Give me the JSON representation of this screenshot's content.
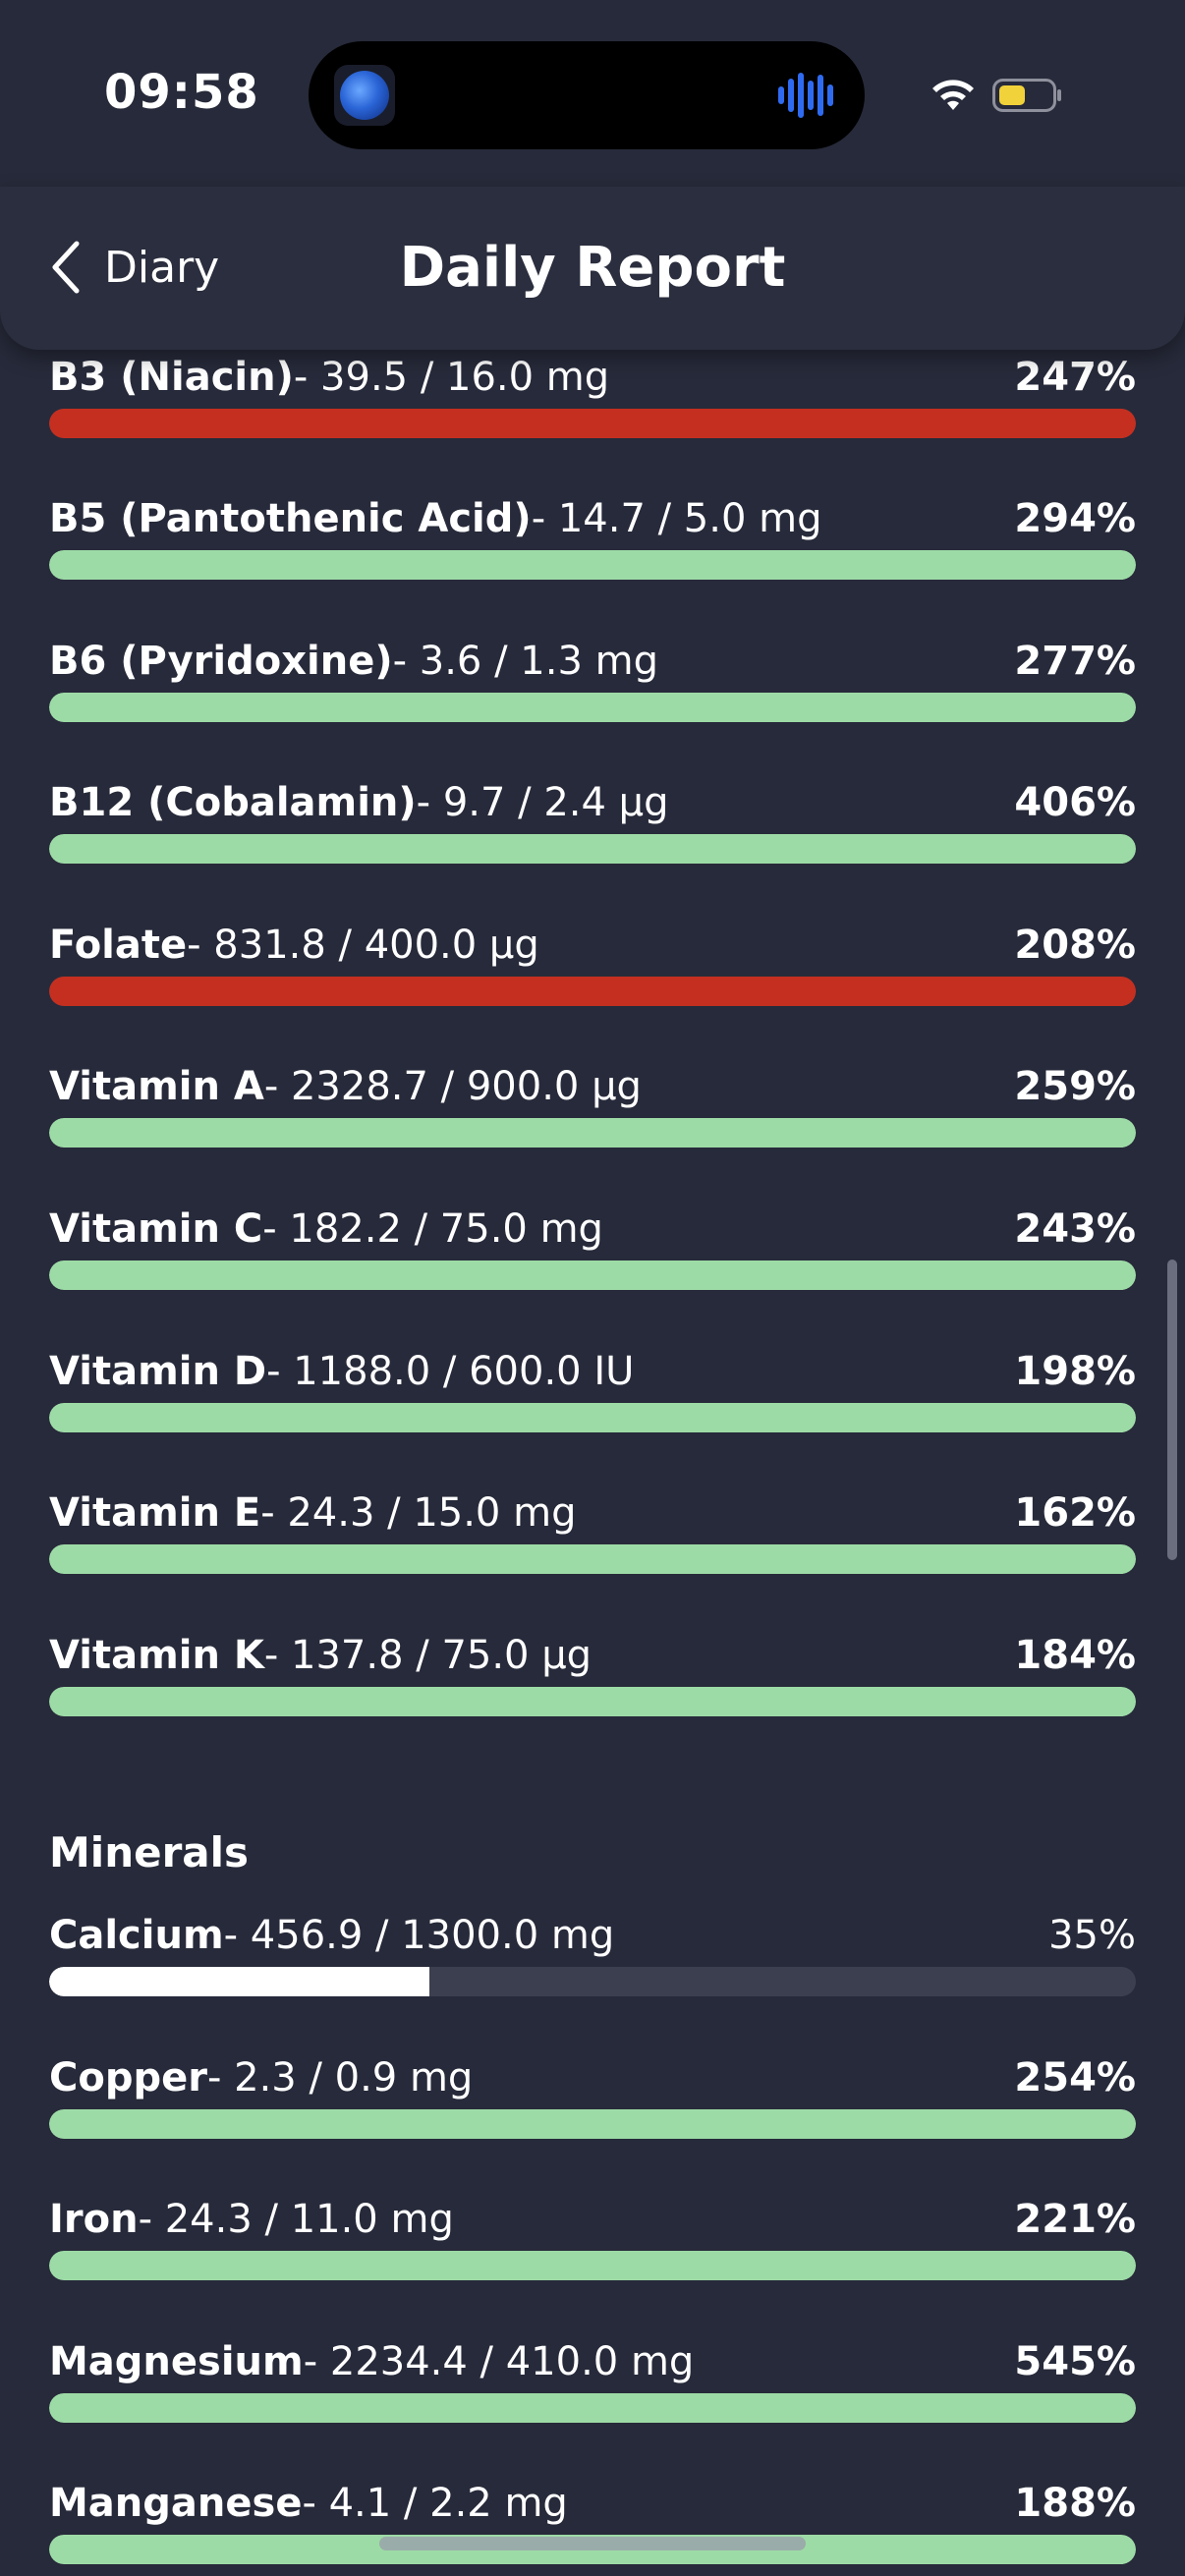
{
  "status_bar": {
    "time": "09:58"
  },
  "nav": {
    "back_label": "Diary",
    "title": "Daily Report"
  },
  "vitamins": [
    {
      "name": "B3 (Niacin)",
      "amount": "- 39.5 / 16.0 mg",
      "percent": "247%",
      "fill": 1.0,
      "state": "over"
    },
    {
      "name": "B5 (Pantothenic Acid)",
      "amount": "- 14.7 / 5.0 mg",
      "percent": "294%",
      "fill": 1.0,
      "state": "ok"
    },
    {
      "name": "B6 (Pyridoxine)",
      "amount": "- 3.6 / 1.3 mg",
      "percent": "277%",
      "fill": 1.0,
      "state": "ok"
    },
    {
      "name": "B12 (Cobalamin)",
      "amount": "- 9.7 / 2.4 µg",
      "percent": "406%",
      "fill": 1.0,
      "state": "ok"
    },
    {
      "name": "Folate",
      "amount": "- 831.8 / 400.0 µg",
      "percent": "208%",
      "fill": 1.0,
      "state": "over"
    },
    {
      "name": "Vitamin A",
      "amount": "- 2328.7 / 900.0 µg",
      "percent": "259%",
      "fill": 1.0,
      "state": "ok"
    },
    {
      "name": "Vitamin C",
      "amount": "- 182.2 / 75.0 mg",
      "percent": "243%",
      "fill": 1.0,
      "state": "ok"
    },
    {
      "name": "Vitamin D",
      "amount": "- 1188.0 / 600.0 IU",
      "percent": "198%",
      "fill": 1.0,
      "state": "ok"
    },
    {
      "name": "Vitamin E",
      "amount": "- 24.3 / 15.0 mg",
      "percent": "162%",
      "fill": 1.0,
      "state": "ok"
    },
    {
      "name": "Vitamin K",
      "amount": "- 137.8 / 75.0 µg",
      "percent": "184%",
      "fill": 1.0,
      "state": "ok"
    }
  ],
  "minerals_title": "Minerals",
  "minerals": [
    {
      "name": "Calcium",
      "amount": "- 456.9 / 1300.0 mg",
      "percent": "35%",
      "fill": 0.35,
      "state": "under"
    },
    {
      "name": "Copper",
      "amount": "- 2.3 / 0.9 mg",
      "percent": "254%",
      "fill": 1.0,
      "state": "ok"
    },
    {
      "name": "Iron",
      "amount": "- 24.3 / 11.0 mg",
      "percent": "221%",
      "fill": 1.0,
      "state": "ok"
    },
    {
      "name": "Magnesium",
      "amount": "- 2234.4 / 410.0 mg",
      "percent": "545%",
      "fill": 1.0,
      "state": "ok"
    },
    {
      "name": "Manganese",
      "amount": "- 4.1 / 2.2 mg",
      "percent": "188%",
      "fill": 1.0,
      "state": "ok"
    }
  ],
  "colors": {
    "background": "#272a3a",
    "bar_ok": "#9ddba6",
    "bar_over": "#c42f20",
    "bar_under": "#ffffff",
    "bar_track": "#3c3f50"
  }
}
